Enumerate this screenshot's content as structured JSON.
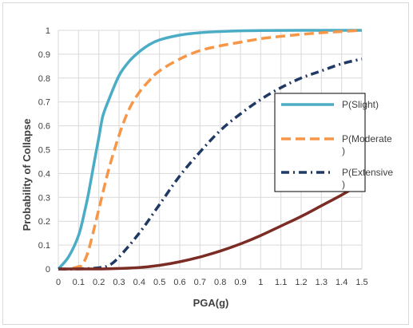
{
  "chart_data": {
    "type": "line",
    "title": "",
    "xlabel": "PGA(g)",
    "ylabel": "Probability of Collapse",
    "xlim": [
      0,
      1.5
    ],
    "ylim": [
      0,
      1
    ],
    "x_ticks": [
      "0",
      "0.1",
      "0.2",
      "0.3",
      "0.4",
      "0.5",
      "0.6",
      "0.7",
      "0.8",
      "0.9",
      "1",
      "1.1",
      "1.2",
      "1.3",
      "1.4",
      "1.5"
    ],
    "y_ticks": [
      "0",
      "0.1",
      "0.2",
      "0.3",
      "0.4",
      "0.5",
      "0.6",
      "0.7",
      "0.8",
      "0.9",
      "1"
    ],
    "grid": true,
    "legend_position": "right",
    "series": [
      {
        "name": "P(Slight)",
        "color": "#4bacc6",
        "dash": "solid",
        "x": [
          0.0,
          0.05,
          0.1,
          0.13,
          0.15,
          0.18,
          0.2,
          0.22,
          0.25,
          0.3,
          0.35,
          0.4,
          0.45,
          0.5,
          0.6,
          0.7,
          0.8,
          0.9,
          1.0,
          1.2,
          1.5
        ],
        "y": [
          0.0,
          0.05,
          0.14,
          0.24,
          0.32,
          0.46,
          0.55,
          0.64,
          0.71,
          0.81,
          0.87,
          0.91,
          0.94,
          0.96,
          0.98,
          0.99,
          0.995,
          0.998,
          0.999,
          1.0,
          1.0
        ]
      },
      {
        "name": "P(Moderate)",
        "color": "#f79646",
        "dash": "dashed",
        "x": [
          0.0,
          0.05,
          0.1,
          0.12,
          0.15,
          0.2,
          0.25,
          0.3,
          0.35,
          0.4,
          0.45,
          0.5,
          0.6,
          0.7,
          0.8,
          0.9,
          1.0,
          1.1,
          1.2,
          1.3,
          1.4,
          1.5
        ],
        "y": [
          0.0,
          0.0,
          0.01,
          0.02,
          0.08,
          0.25,
          0.42,
          0.56,
          0.67,
          0.74,
          0.79,
          0.83,
          0.88,
          0.915,
          0.935,
          0.95,
          0.965,
          0.975,
          0.983,
          0.99,
          0.995,
          1.0
        ]
      },
      {
        "name": "P(Extensive)",
        "color": "#1f3864",
        "dash": "dashdot",
        "x": [
          0.0,
          0.1,
          0.2,
          0.25,
          0.3,
          0.4,
          0.5,
          0.6,
          0.7,
          0.8,
          0.9,
          1.0,
          1.1,
          1.2,
          1.3,
          1.4,
          1.5
        ],
        "y": [
          0.0,
          0.0,
          0.005,
          0.015,
          0.05,
          0.15,
          0.27,
          0.39,
          0.49,
          0.58,
          0.65,
          0.71,
          0.76,
          0.8,
          0.83,
          0.86,
          0.88
        ]
      },
      {
        "color": "#7b2c24",
        "dash": "solid",
        "x": [
          0.0,
          0.1,
          0.2,
          0.3,
          0.4,
          0.5,
          0.6,
          0.7,
          0.8,
          0.9,
          1.0,
          1.1,
          1.2,
          1.3,
          1.4,
          1.5
        ],
        "y": [
          0.0,
          0.0,
          0.0,
          0.002,
          0.006,
          0.015,
          0.03,
          0.05,
          0.075,
          0.105,
          0.14,
          0.18,
          0.22,
          0.265,
          0.31,
          0.36
        ]
      }
    ]
  },
  "legend": {
    "items": [
      {
        "line1": "P(Slight)",
        "line2": ""
      },
      {
        "line1": "P(Moderate",
        "line2": ")"
      },
      {
        "line1": "P(Extensive",
        "line2": ")"
      }
    ]
  }
}
